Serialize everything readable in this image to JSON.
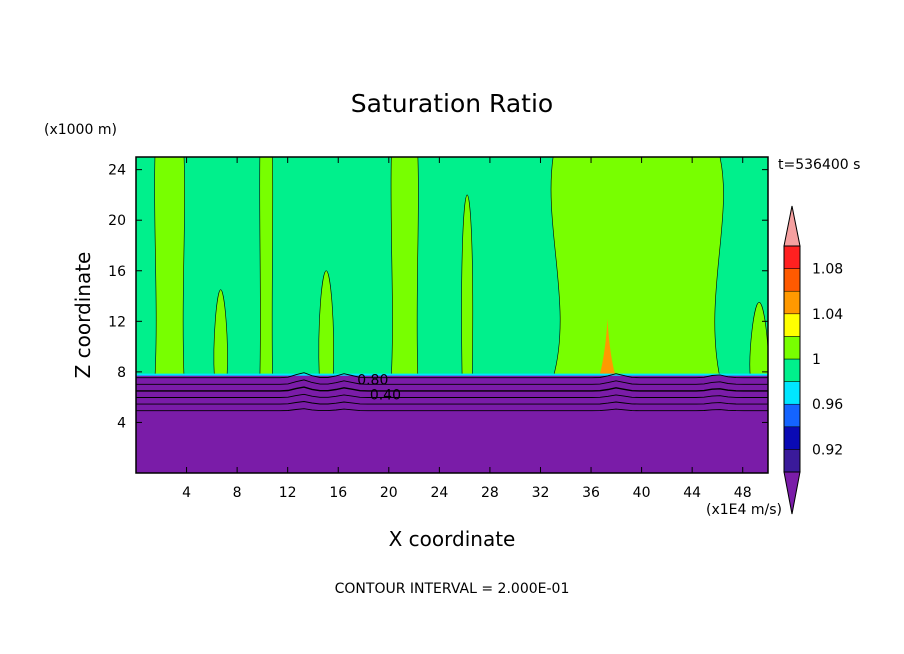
{
  "chart_data": {
    "type": "heatmap",
    "title": "Saturation Ratio",
    "xlabel": "X coordinate",
    "ylabel": "Z coordinate",
    "x_unit_label": "(x1E4 m/s)",
    "y_unit_label": "(x1000 m)",
    "time_label": "t=536400 s",
    "footer": "CONTOUR INTERVAL = 2.000E-01",
    "xlim": [
      0,
      50
    ],
    "ylim": [
      0,
      25
    ],
    "x_ticks": [
      4,
      8,
      12,
      16,
      20,
      24,
      28,
      32,
      36,
      40,
      44,
      48
    ],
    "y_ticks": [
      4,
      8,
      12,
      16,
      20,
      24
    ],
    "contour_labels": [
      {
        "text": "0.80",
        "x": 17.5,
        "z": 7.4
      },
      {
        "text": "0.40",
        "x": 18.5,
        "z": 6.2
      }
    ],
    "colorbar": {
      "tick_labels": [
        "1.08",
        "1.04",
        "1",
        "0.96",
        "0.92"
      ],
      "tick_values": [
        1.08,
        1.04,
        1.0,
        0.96,
        0.92
      ],
      "levels": [
        {
          "from": 0.9,
          "to": 0.92,
          "color": "#3a1a9a"
        },
        {
          "from": 0.92,
          "to": 0.94,
          "color": "#0a0ab4"
        },
        {
          "from": 0.94,
          "to": 0.96,
          "color": "#1464ff"
        },
        {
          "from": 0.96,
          "to": 0.98,
          "color": "#00e6ff"
        },
        {
          "from": 0.98,
          "to": 1.0,
          "color": "#00f08c"
        },
        {
          "from": 1.0,
          "to": 1.02,
          "color": "#78ff00"
        },
        {
          "from": 1.02,
          "to": 1.04,
          "color": "#ffff00"
        },
        {
          "from": 1.04,
          "to": 1.06,
          "color": "#ff9900"
        },
        {
          "from": 1.06,
          "to": 1.08,
          "color": "#ff5a00"
        },
        {
          "from": 1.08,
          "to": 1.1,
          "color": "#ff2020"
        }
      ],
      "under_color": "#7a1ca8",
      "over_color": "#f5a0a0"
    },
    "regions": {
      "lower_layer_top_z": 7.7,
      "lower_layer_value": 0.4,
      "upper_background_value": 0.99,
      "plume_value": 1.01,
      "hotspot": {
        "x": 37.3,
        "z_top": 12.2,
        "value": 1.04
      },
      "plumes": [
        {
          "x0": 1.5,
          "x1": 3.8,
          "z_top": 25
        },
        {
          "x0": 6.2,
          "x1": 7.2,
          "z_top": 14.5
        },
        {
          "x0": 9.8,
          "x1": 10.8,
          "z_top": 25
        },
        {
          "x0": 14.5,
          "x1": 15.6,
          "z_top": 16
        },
        {
          "x0": 20.2,
          "x1": 22.3,
          "z_top": 25
        },
        {
          "x0": 25.8,
          "x1": 26.6,
          "z_top": 22
        },
        {
          "x0": 33.0,
          "x1": 46.2,
          "z_top": 25
        },
        {
          "x0": 48.6,
          "x1": 50.0,
          "z_top": 13.5
        }
      ]
    }
  }
}
